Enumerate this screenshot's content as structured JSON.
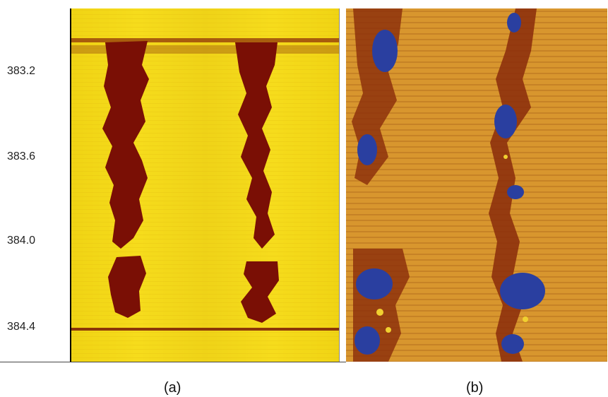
{
  "depth_axis": {
    "ticks": [
      "383.2",
      "383.6",
      "384.0",
      "384.4"
    ]
  },
  "panels": [
    {
      "caption": "(a)",
      "palette": {
        "background": "#f3d815",
        "feature": "#7a0f05"
      }
    },
    {
      "caption": "(b)",
      "palette": {
        "background": "#d8962e",
        "feature": "#8a2c0a",
        "highlight": "#2a3fa0"
      }
    }
  ]
}
